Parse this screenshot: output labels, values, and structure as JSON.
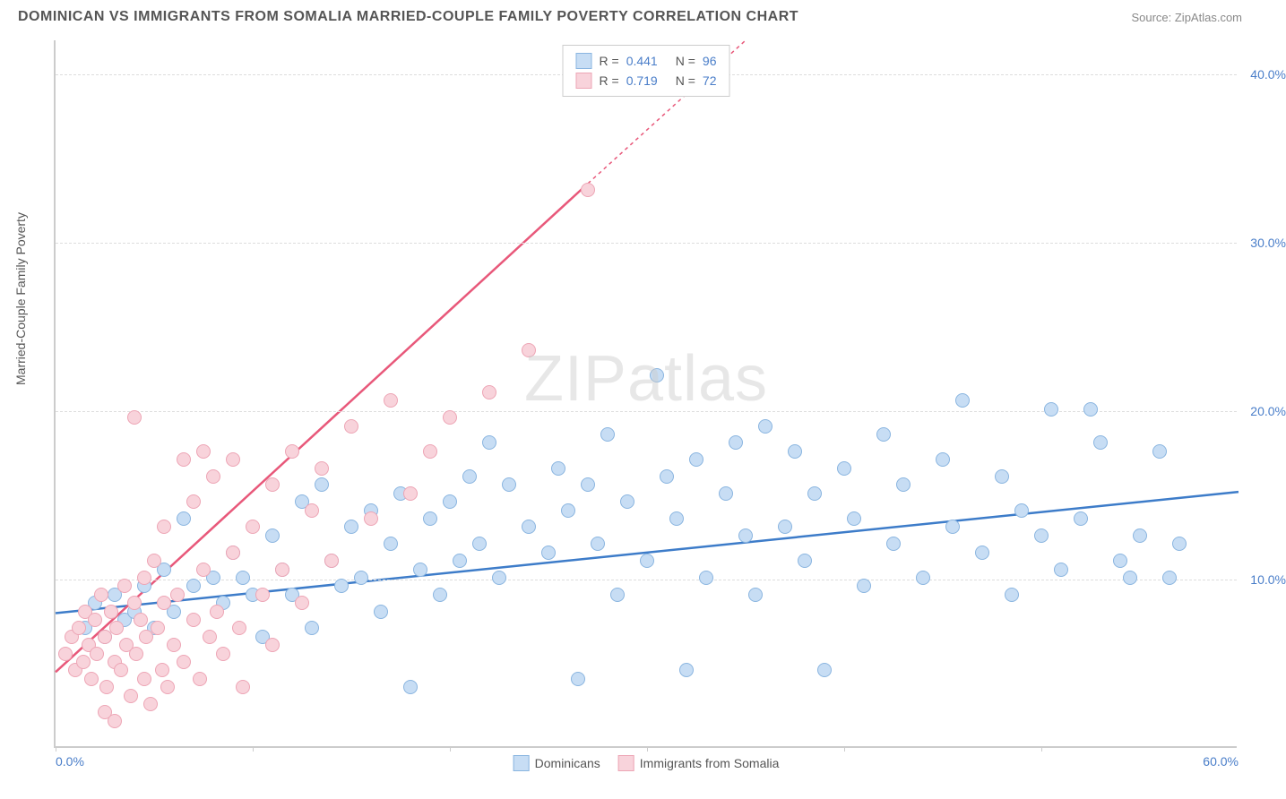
{
  "header": {
    "title": "DOMINICAN VS IMMIGRANTS FROM SOMALIA MARRIED-COUPLE FAMILY POVERTY CORRELATION CHART",
    "source": "Source: ZipAtlas.com"
  },
  "chart": {
    "type": "scatter",
    "ylabel": "Married-Couple Family Poverty",
    "xlim": [
      0,
      60
    ],
    "ylim": [
      0,
      42
    ],
    "xticks": [
      0,
      60
    ],
    "xtick_labels": [
      "0.0%",
      "60.0%"
    ],
    "xtick_marks": [
      0,
      10,
      20,
      30,
      40,
      50
    ],
    "yticks": [
      10,
      20,
      30,
      40
    ],
    "ytick_labels": [
      "10.0%",
      "20.0%",
      "30.0%",
      "40.0%"
    ],
    "grid_color": "#dddddd",
    "background_color": "#ffffff",
    "point_radius": 8,
    "point_stroke_width": 1,
    "watermark": "ZIPatlas",
    "series": [
      {
        "name": "Dominicans",
        "color_fill": "#c7ddf4",
        "color_stroke": "#8ab5e0",
        "r_value": "0.441",
        "n_value": "96",
        "trendline": {
          "x1": 0,
          "y1": 8.0,
          "x2": 60,
          "y2": 15.2,
          "color": "#3d7cc9",
          "width": 2.5,
          "dash": ""
        },
        "points": [
          [
            1.5,
            7.0
          ],
          [
            2.0,
            8.5
          ],
          [
            2.5,
            6.5
          ],
          [
            3.0,
            9.0
          ],
          [
            3.5,
            7.5
          ],
          [
            4.0,
            8.0
          ],
          [
            4.5,
            9.5
          ],
          [
            5.0,
            7.0
          ],
          [
            5.5,
            10.5
          ],
          [
            6.0,
            8.0
          ],
          [
            6.5,
            13.5
          ],
          [
            7.0,
            9.5
          ],
          [
            8.0,
            10.0
          ],
          [
            8.5,
            8.5
          ],
          [
            9.0,
            11.5
          ],
          [
            9.5,
            10.0
          ],
          [
            10.0,
            9.0
          ],
          [
            10.5,
            6.5
          ],
          [
            11.0,
            12.5
          ],
          [
            11.5,
            10.5
          ],
          [
            12.0,
            9.0
          ],
          [
            12.5,
            14.5
          ],
          [
            13.0,
            7.0
          ],
          [
            13.5,
            15.5
          ],
          [
            14.0,
            11.0
          ],
          [
            14.5,
            9.5
          ],
          [
            15.0,
            13.0
          ],
          [
            15.5,
            10.0
          ],
          [
            16.0,
            14.0
          ],
          [
            16.5,
            8.0
          ],
          [
            17.0,
            12.0
          ],
          [
            17.5,
            15.0
          ],
          [
            18.0,
            3.5
          ],
          [
            18.5,
            10.5
          ],
          [
            19.0,
            13.5
          ],
          [
            19.5,
            9.0
          ],
          [
            20.0,
            14.5
          ],
          [
            20.5,
            11.0
          ],
          [
            21.0,
            16.0
          ],
          [
            21.5,
            12.0
          ],
          [
            22.0,
            18.0
          ],
          [
            22.5,
            10.0
          ],
          [
            23.0,
            15.5
          ],
          [
            24.0,
            13.0
          ],
          [
            25.0,
            11.5
          ],
          [
            25.5,
            16.5
          ],
          [
            26.0,
            14.0
          ],
          [
            26.5,
            4.0
          ],
          [
            27.0,
            15.5
          ],
          [
            27.5,
            12.0
          ],
          [
            28.0,
            18.5
          ],
          [
            28.5,
            9.0
          ],
          [
            29.0,
            14.5
          ],
          [
            30.0,
            11.0
          ],
          [
            30.5,
            22.0
          ],
          [
            31.0,
            16.0
          ],
          [
            31.5,
            13.5
          ],
          [
            32.0,
            4.5
          ],
          [
            32.5,
            17.0
          ],
          [
            33.0,
            10.0
          ],
          [
            34.0,
            15.0
          ],
          [
            34.5,
            18.0
          ],
          [
            35.0,
            12.5
          ],
          [
            35.5,
            9.0
          ],
          [
            36.0,
            19.0
          ],
          [
            37.0,
            13.0
          ],
          [
            37.5,
            17.5
          ],
          [
            38.0,
            11.0
          ],
          [
            38.5,
            15.0
          ],
          [
            39.0,
            4.5
          ],
          [
            40.0,
            16.5
          ],
          [
            40.5,
            13.5
          ],
          [
            41.0,
            9.5
          ],
          [
            42.0,
            18.5
          ],
          [
            42.5,
            12.0
          ],
          [
            43.0,
            15.5
          ],
          [
            44.0,
            10.0
          ],
          [
            45.0,
            17.0
          ],
          [
            45.5,
            13.0
          ],
          [
            46.0,
            20.5
          ],
          [
            47.0,
            11.5
          ],
          [
            48.0,
            16.0
          ],
          [
            48.5,
            9.0
          ],
          [
            49.0,
            14.0
          ],
          [
            50.0,
            12.5
          ],
          [
            50.5,
            20.0
          ],
          [
            51.0,
            10.5
          ],
          [
            52.0,
            13.5
          ],
          [
            53.0,
            18.0
          ],
          [
            54.0,
            11.0
          ],
          [
            54.5,
            10.0
          ],
          [
            55.0,
            12.5
          ],
          [
            56.0,
            17.5
          ],
          [
            56.5,
            10.0
          ],
          [
            57.0,
            12.0
          ],
          [
            52.5,
            20.0
          ]
        ]
      },
      {
        "name": "Immigrants from Somalia",
        "color_fill": "#f8d3db",
        "color_stroke": "#eda5b5",
        "r_value": "0.719",
        "n_value": "72",
        "trendline": {
          "x1": 0,
          "y1": 4.5,
          "x2": 27,
          "y2": 33.5,
          "color": "#e8587a",
          "width": 2.5,
          "dash": ""
        },
        "trendline_ext": {
          "x1": 27,
          "y1": 33.5,
          "x2": 35,
          "y2": 42.0,
          "color": "#e8587a",
          "width": 1.5,
          "dash": "4,4"
        },
        "points": [
          [
            0.5,
            5.5
          ],
          [
            0.8,
            6.5
          ],
          [
            1.0,
            4.5
          ],
          [
            1.2,
            7.0
          ],
          [
            1.4,
            5.0
          ],
          [
            1.5,
            8.0
          ],
          [
            1.7,
            6.0
          ],
          [
            1.8,
            4.0
          ],
          [
            2.0,
            7.5
          ],
          [
            2.1,
            5.5
          ],
          [
            2.3,
            9.0
          ],
          [
            2.5,
            6.5
          ],
          [
            2.6,
            3.5
          ],
          [
            2.8,
            8.0
          ],
          [
            3.0,
            5.0
          ],
          [
            3.1,
            7.0
          ],
          [
            3.3,
            4.5
          ],
          [
            3.5,
            9.5
          ],
          [
            3.6,
            6.0
          ],
          [
            3.8,
            3.0
          ],
          [
            4.0,
            8.5
          ],
          [
            4.1,
            5.5
          ],
          [
            4.3,
            7.5
          ],
          [
            4.5,
            4.0
          ],
          [
            4.5,
            10.0
          ],
          [
            4.6,
            6.5
          ],
          [
            4.8,
            2.5
          ],
          [
            5.0,
            11.0
          ],
          [
            5.2,
            7.0
          ],
          [
            5.4,
            4.5
          ],
          [
            5.5,
            13.0
          ],
          [
            5.5,
            8.5
          ],
          [
            5.7,
            3.5
          ],
          [
            6.0,
            6.0
          ],
          [
            6.2,
            9.0
          ],
          [
            6.5,
            5.0
          ],
          [
            7.0,
            14.5
          ],
          [
            7.0,
            7.5
          ],
          [
            7.3,
            4.0
          ],
          [
            7.5,
            10.5
          ],
          [
            7.8,
            6.5
          ],
          [
            8.0,
            16.0
          ],
          [
            8.2,
            8.0
          ],
          [
            8.5,
            5.5
          ],
          [
            9.0,
            11.5
          ],
          [
            9.0,
            17.0
          ],
          [
            9.3,
            7.0
          ],
          [
            9.5,
            3.5
          ],
          [
            10.0,
            13.0
          ],
          [
            10.5,
            9.0
          ],
          [
            11.0,
            15.5
          ],
          [
            11.0,
            6.0
          ],
          [
            11.5,
            10.5
          ],
          [
            12.0,
            17.5
          ],
          [
            12.5,
            8.5
          ],
          [
            13.0,
            14.0
          ],
          [
            13.5,
            16.5
          ],
          [
            14.0,
            11.0
          ],
          [
            15.0,
            19.0
          ],
          [
            16.0,
            13.5
          ],
          [
            17.0,
            20.5
          ],
          [
            18.0,
            15.0
          ],
          [
            19.0,
            17.5
          ],
          [
            20.0,
            19.5
          ],
          [
            4.0,
            19.5
          ],
          [
            6.5,
            17.0
          ],
          [
            7.5,
            17.5
          ],
          [
            22.0,
            21.0
          ],
          [
            24.0,
            23.5
          ],
          [
            27.0,
            33.0
          ],
          [
            2.5,
            2.0
          ],
          [
            3.0,
            1.5
          ]
        ]
      }
    ],
    "legend_bottom": [
      {
        "label": "Dominicans",
        "fill": "#c7ddf4",
        "stroke": "#8ab5e0"
      },
      {
        "label": "Immigrants from Somalia",
        "fill": "#f8d3db",
        "stroke": "#eda5b5"
      }
    ]
  }
}
